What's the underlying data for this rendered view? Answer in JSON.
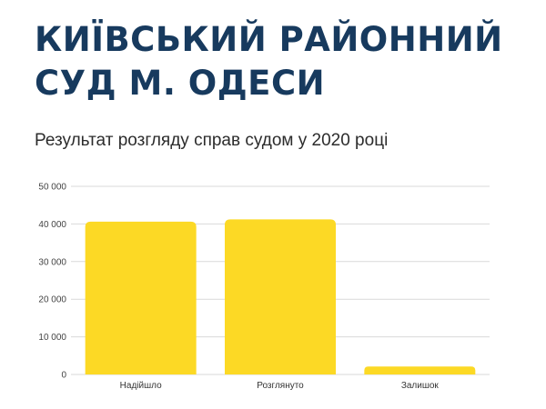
{
  "title": "КИЇВСЬКИЙ РАЙОННИЙ СУД М. ОДЕСИ",
  "chart_data": {
    "type": "bar",
    "title": "Результат розгляду справ судом у 2020 році",
    "categories": [
      "Надійшло",
      "Розглянуто",
      "Залишок"
    ],
    "values": [
      40600,
      41200,
      2100
    ],
    "ylim": [
      0,
      50000
    ],
    "yticks": [
      0,
      10000,
      20000,
      30000,
      40000,
      50000
    ],
    "ytick_labels": [
      "0",
      "10 000",
      "20 000",
      "30 000",
      "40 000",
      "50 000"
    ],
    "xlabel": "",
    "ylabel": "",
    "grid": true,
    "legend": "none",
    "bar_color": "#fcd925",
    "grid_color": "#d9d9d9"
  }
}
